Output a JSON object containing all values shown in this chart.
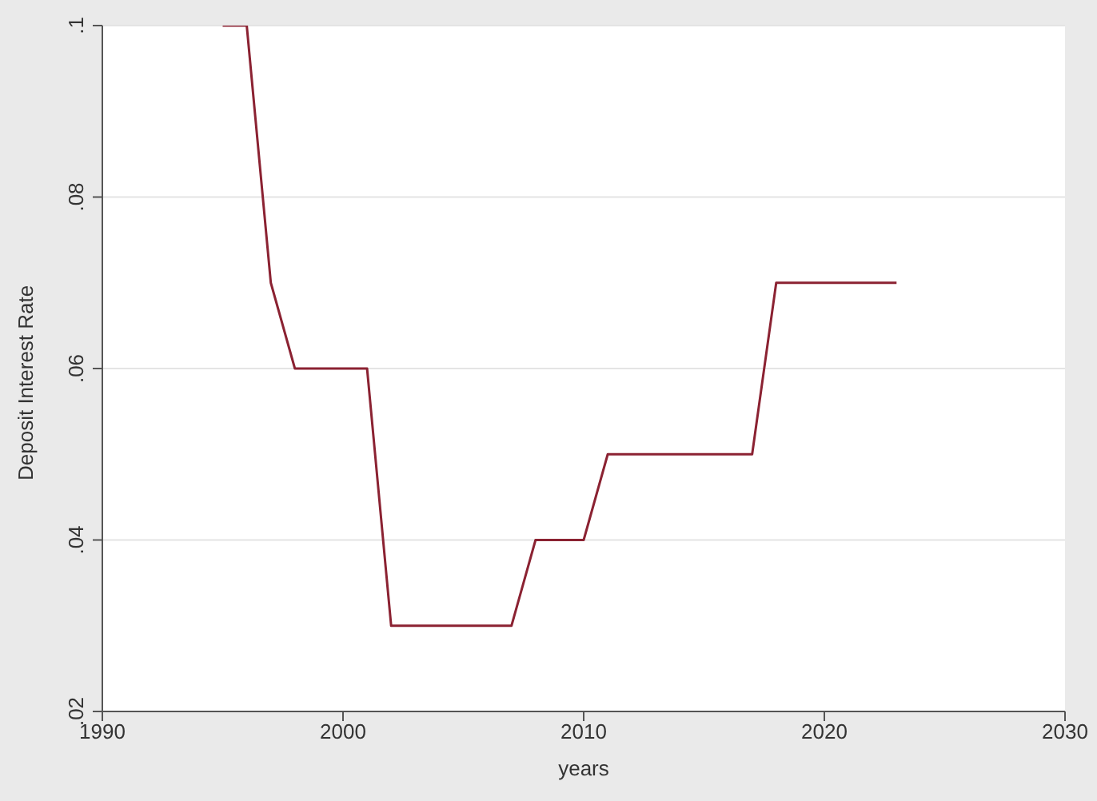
{
  "chart_data": {
    "type": "line",
    "xlabel": "years",
    "ylabel": "Deposit Interest Rate",
    "x": [
      1995,
      1996,
      1997,
      1998,
      2001,
      2002,
      2007,
      2008,
      2010,
      2011,
      2017,
      2018,
      2023
    ],
    "series": [
      {
        "color": "#8b2232",
        "values": [
          0.1,
          0.1,
          0.07,
          0.06,
          0.06,
          0.03,
          0.03,
          0.04,
          0.04,
          0.05,
          0.05,
          0.07,
          0.07
        ]
      }
    ],
    "xlim": [
      1990,
      2030
    ],
    "xticks": [
      1990,
      2000,
      2010,
      2020,
      2030
    ],
    "ylim": [
      0.02,
      0.1
    ],
    "yticks": [
      {
        "value": 0.02,
        "label": ".02"
      },
      {
        "value": 0.04,
        "label": ".04"
      },
      {
        "value": 0.06,
        "label": ".06"
      },
      {
        "value": 0.08,
        "label": ".08"
      },
      {
        "value": 0.1,
        "label": ".1"
      }
    ],
    "grid": "y",
    "legend": false,
    "marker": "none",
    "line_style": "solid"
  }
}
